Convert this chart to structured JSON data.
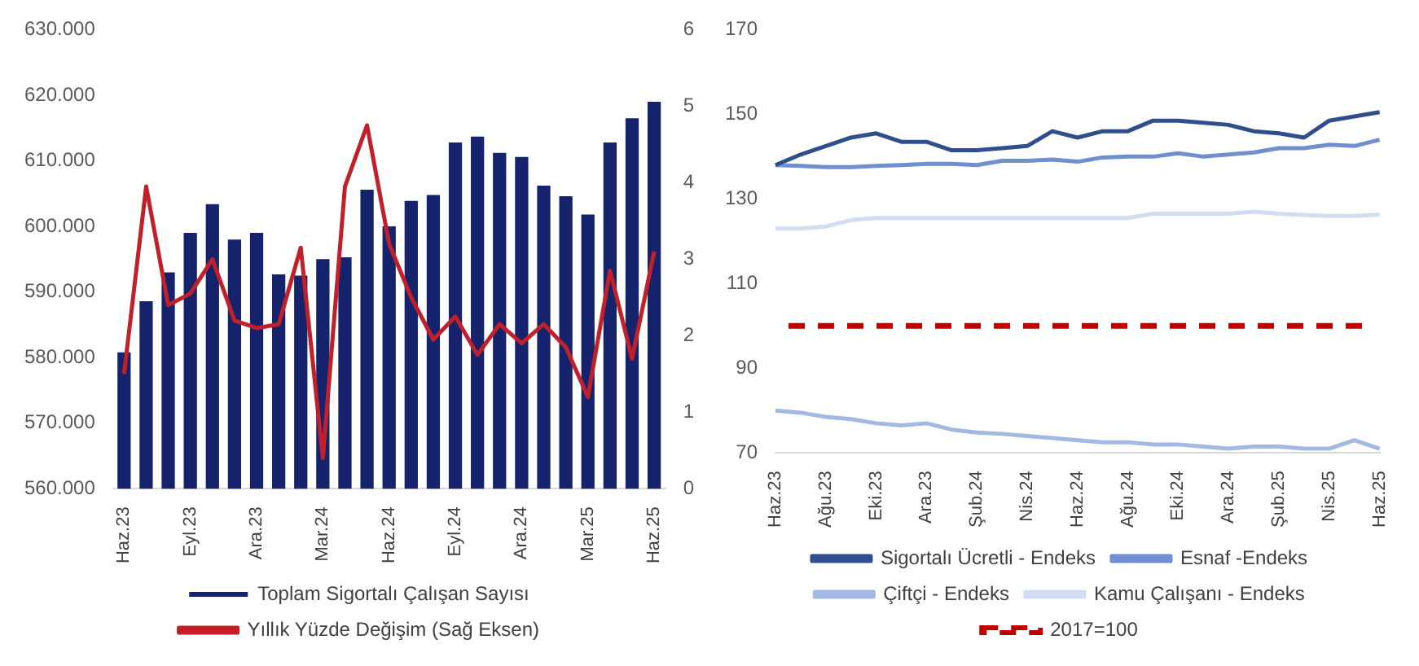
{
  "chart_data": [
    {
      "type": "bar",
      "categories": [
        "Haz.23",
        null,
        null,
        "Eyl.23",
        null,
        null,
        "Ara.23",
        null,
        null,
        "Mar.24",
        null,
        null,
        "Haz.24",
        null,
        null,
        "Eyl.24",
        null,
        null,
        "Ara.24",
        null,
        null,
        "Mar.25",
        null,
        null,
        "Haz.25"
      ],
      "series": [
        {
          "name": "Toplam Sigortalı Çalışan Sayısı",
          "type": "bar",
          "color": "#14236b",
          "values": [
            580800,
            588600,
            593000,
            599000,
            603400,
            598000,
            599000,
            592700,
            592500,
            595000,
            595300,
            605600,
            600000,
            603900,
            604800,
            612800,
            613700,
            611200,
            610600,
            606200,
            604600,
            601800,
            612800,
            616500,
            619000
          ]
        },
        {
          "name": "Yıllık Yüzde Değişim (Sağ Eksen)",
          "type": "line",
          "axis": "y2",
          "color": "#c0202a",
          "values": [
            1.5,
            3.95,
            2.4,
            2.55,
            3.0,
            2.2,
            2.1,
            2.15,
            3.15,
            0.4,
            3.95,
            4.75,
            3.2,
            2.5,
            1.95,
            2.25,
            1.75,
            2.15,
            1.9,
            2.15,
            1.85,
            1.2,
            2.85,
            1.7,
            3.1
          ]
        }
      ],
      "ylim": [
        560000,
        630000
      ],
      "yticks": [
        {
          "value": 560000,
          "label": "560.000"
        },
        {
          "value": 570000,
          "label": "570.000"
        },
        {
          "value": 580000,
          "label": "580.000"
        },
        {
          "value": 590000,
          "label": "590.000"
        },
        {
          "value": 600000,
          "label": "600.000"
        },
        {
          "value": 610000,
          "label": "610.000"
        },
        {
          "value": 620000,
          "label": "620.000"
        },
        {
          "value": 630000,
          "label": "630.000"
        }
      ],
      "y2lim": [
        0,
        6
      ],
      "y2ticks": [
        0,
        1,
        2,
        3,
        4,
        5,
        6
      ],
      "legend": "bottom",
      "marker": "none"
    },
    {
      "type": "line",
      "categories": [
        "Haz.23",
        null,
        "Ağu.23",
        null,
        "Eki.23",
        null,
        "Ara.23",
        null,
        "Şub.24",
        null,
        "Nis.24",
        null,
        "Haz.24",
        null,
        "Ağu.24",
        null,
        "Eki.24",
        null,
        "Ara.24",
        null,
        "Şub.25",
        null,
        "Nis.25",
        null,
        "Haz.25"
      ],
      "series": [
        {
          "name": "Sigortalı Ücretli - Endeks",
          "color": "#2e4f8c",
          "values": [
            138,
            140.5,
            142.5,
            144.5,
            145.5,
            143.5,
            143.5,
            141.5,
            141.5,
            142,
            142.5,
            146,
            144.5,
            146,
            146,
            148.5,
            148.5,
            148,
            147.5,
            146,
            145.5,
            144.5,
            148.5,
            149.5,
            150.5
          ]
        },
        {
          "name": "Esnaf -Endeks",
          "color": "#6f8fcf",
          "values": [
            138,
            137.8,
            137.5,
            137.5,
            137.8,
            138,
            138.3,
            138.3,
            138,
            139,
            139,
            139.3,
            138.8,
            139.8,
            140,
            140,
            140.8,
            140,
            140.5,
            141,
            142,
            142,
            142.8,
            142.5,
            144
          ]
        },
        {
          "name": "Çiftçi - Endeks",
          "color": "#a3b8e3",
          "values": [
            80,
            79.5,
            78.5,
            78,
            77,
            76.5,
            77,
            75.5,
            74.8,
            74.5,
            74,
            73.5,
            73,
            72.5,
            72.5,
            72,
            72,
            71.5,
            71,
            71.5,
            71.5,
            71,
            71,
            73,
            71
          ]
        },
        {
          "name": "Kamu Çalışanı - Endeks",
          "color": "#d3ddf1",
          "values": [
            123,
            123,
            123.5,
            125,
            125.5,
            125.5,
            125.5,
            125.5,
            125.5,
            125.5,
            125.5,
            125.5,
            125.5,
            125.5,
            125.5,
            126.5,
            126.5,
            126.5,
            126.5,
            127,
            126.5,
            126.2,
            126,
            126,
            126.3
          ]
        }
      ],
      "ref_lines": [
        {
          "axis": "y",
          "value": 100,
          "label": "2017=100",
          "color": "#c00000",
          "line_style": "dashed"
        }
      ],
      "ylim": [
        70,
        170
      ],
      "yticks": [
        70,
        90,
        110,
        130,
        150,
        170
      ],
      "legend": "bottom",
      "marker": "none",
      "line_style": "solid"
    }
  ]
}
